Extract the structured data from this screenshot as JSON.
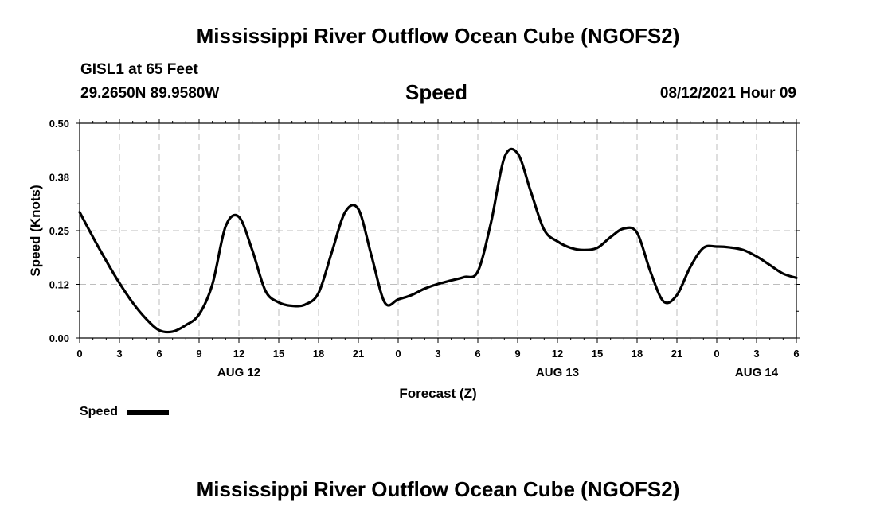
{
  "header": {
    "title": "Mississippi River Outflow Ocean Cube (NGOFS2)",
    "station": "GISL1 at 65 Feet",
    "coords": "29.2650N  89.9580W",
    "variable": "Speed",
    "timestamp": "08/12/2021 Hour 09"
  },
  "footer": {
    "title": "Mississippi River Outflow Ocean Cube (NGOFS2)"
  },
  "legend": {
    "label": "Speed",
    "color": "#000000"
  },
  "chart_data": {
    "type": "line",
    "title": "Speed",
    "xlabel": "Forecast (Z)",
    "ylabel": "Speed (Knots)",
    "grid": true,
    "xlim": [
      0,
      54
    ],
    "ylim": [
      0,
      0.5
    ],
    "x_ticks": [
      0,
      3,
      6,
      9,
      12,
      15,
      18,
      21,
      24,
      27,
      30,
      33,
      36,
      39,
      42,
      45,
      48,
      51,
      54
    ],
    "x_tick_labels": [
      "0",
      "3",
      "6",
      "9",
      "12",
      "15",
      "18",
      "21",
      "0",
      "3",
      "6",
      "9",
      "12",
      "15",
      "18",
      "21",
      "0",
      "3",
      "6"
    ],
    "y_ticks": [
      0,
      0.125,
      0.25,
      0.375,
      0.5
    ],
    "y_tick_labels": [
      "0.00",
      "0.12",
      "0.25",
      "0.38",
      "0.50"
    ],
    "date_labels": [
      {
        "x": 12,
        "label": "AUG 12"
      },
      {
        "x": 36,
        "label": "AUG 13"
      },
      {
        "x": 51,
        "label": "AUG 14"
      }
    ],
    "series": [
      {
        "name": "Speed",
        "color": "#000000",
        "x": [
          0,
          1,
          2,
          3,
          4,
          5,
          6,
          7,
          8,
          9,
          10,
          11,
          12,
          13,
          14,
          15,
          16,
          17,
          18,
          19,
          20,
          21,
          22,
          23,
          24,
          25,
          26,
          27,
          28,
          29,
          30,
          31,
          32,
          33,
          34,
          35,
          36,
          37,
          38,
          39,
          40,
          41,
          42,
          43,
          44,
          45,
          46,
          47,
          48,
          49,
          50,
          51,
          52,
          53,
          54
        ],
        "values": [
          0.293,
          0.235,
          0.18,
          0.128,
          0.082,
          0.045,
          0.018,
          0.015,
          0.03,
          0.055,
          0.125,
          0.26,
          0.282,
          0.205,
          0.11,
          0.083,
          0.075,
          0.078,
          0.105,
          0.2,
          0.293,
          0.3,
          0.19,
          0.082,
          0.09,
          0.1,
          0.115,
          0.126,
          0.134,
          0.142,
          0.155,
          0.27,
          0.42,
          0.43,
          0.34,
          0.252,
          0.225,
          0.21,
          0.205,
          0.21,
          0.235,
          0.255,
          0.245,
          0.155,
          0.085,
          0.1,
          0.165,
          0.21,
          0.213,
          0.211,
          0.205,
          0.19,
          0.17,
          0.15,
          0.14
        ]
      }
    ]
  }
}
